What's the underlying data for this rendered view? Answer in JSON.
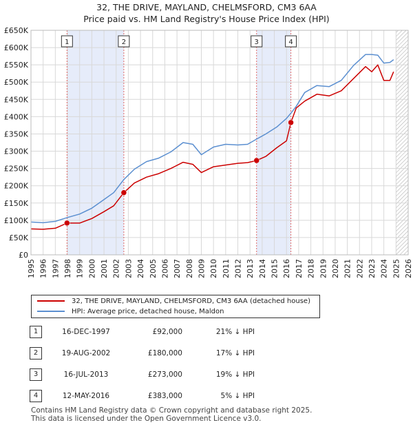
{
  "title_line1": "32, THE DRIVE, MAYLAND, CHELMSFORD, CM3 6AA",
  "title_line2": "Price paid vs. HM Land Registry's House Price Index (HPI)",
  "chart_data": {
    "type": "line",
    "title": "32, THE DRIVE, MAYLAND, CHELMSFORD, CM3 6AA — Price paid vs. HM Land Registry's House Price Index (HPI)",
    "xlabel": "",
    "ylabel": "",
    "xlim": [
      1995,
      2026
    ],
    "ylim": [
      0,
      650000
    ],
    "x_ticks": [
      1995,
      1996,
      1997,
      1998,
      1999,
      2000,
      2001,
      2002,
      2003,
      2004,
      2005,
      2006,
      2007,
      2008,
      2009,
      2010,
      2011,
      2012,
      2013,
      2014,
      2015,
      2016,
      2017,
      2018,
      2019,
      2020,
      2021,
      2022,
      2023,
      2024,
      2025,
      2026
    ],
    "y_ticks": [
      0,
      50000,
      100000,
      150000,
      200000,
      250000,
      300000,
      350000,
      400000,
      450000,
      500000,
      550000,
      600000,
      650000
    ],
    "y_tick_labels": [
      "£0",
      "£50K",
      "£100K",
      "£150K",
      "£200K",
      "£250K",
      "£300K",
      "£350K",
      "£400K",
      "£450K",
      "£500K",
      "£550K",
      "£600K",
      "£650K"
    ],
    "series": [
      {
        "name": "32, THE DRIVE, MAYLAND, CHELMSFORD, CM3 6AA (detached house)",
        "color": "#cc0000",
        "points": [
          [
            1995.0,
            75000
          ],
          [
            1996.0,
            74000
          ],
          [
            1997.0,
            77000
          ],
          [
            1997.96,
            92000
          ],
          [
            1999.0,
            92000
          ],
          [
            2000.0,
            105000
          ],
          [
            2001.0,
            125000
          ],
          [
            2001.8,
            142000
          ],
          [
            2002.63,
            180000
          ],
          [
            2003.5,
            208000
          ],
          [
            2004.5,
            225000
          ],
          [
            2005.5,
            235000
          ],
          [
            2006.5,
            250000
          ],
          [
            2007.5,
            268000
          ],
          [
            2008.3,
            262000
          ],
          [
            2009.0,
            238000
          ],
          [
            2010.0,
            255000
          ],
          [
            2011.0,
            260000
          ],
          [
            2012.0,
            265000
          ],
          [
            2012.8,
            267000
          ],
          [
            2013.54,
            273000
          ],
          [
            2014.3,
            285000
          ],
          [
            2015.2,
            310000
          ],
          [
            2016.0,
            330000
          ],
          [
            2016.36,
            383000
          ],
          [
            2016.8,
            425000
          ],
          [
            2017.5,
            445000
          ],
          [
            2018.5,
            465000
          ],
          [
            2019.5,
            460000
          ],
          [
            2020.5,
            475000
          ],
          [
            2021.5,
            510000
          ],
          [
            2022.5,
            545000
          ],
          [
            2023.0,
            530000
          ],
          [
            2023.5,
            550000
          ],
          [
            2024.0,
            505000
          ],
          [
            2024.5,
            505000
          ],
          [
            2024.8,
            530000
          ]
        ]
      },
      {
        "name": "HPI: Average price, detached house, Maldon",
        "color": "#5b8fd0",
        "points": [
          [
            1995.0,
            95000
          ],
          [
            1996.0,
            93000
          ],
          [
            1997.0,
            97000
          ],
          [
            1998.0,
            108000
          ],
          [
            1999.0,
            118000
          ],
          [
            2000.0,
            135000
          ],
          [
            2001.0,
            160000
          ],
          [
            2001.8,
            180000
          ],
          [
            2002.63,
            218000
          ],
          [
            2003.5,
            248000
          ],
          [
            2004.5,
            270000
          ],
          [
            2005.5,
            280000
          ],
          [
            2006.5,
            298000
          ],
          [
            2007.5,
            325000
          ],
          [
            2008.3,
            320000
          ],
          [
            2009.0,
            290000
          ],
          [
            2010.0,
            312000
          ],
          [
            2011.0,
            320000
          ],
          [
            2012.0,
            318000
          ],
          [
            2012.8,
            320000
          ],
          [
            2013.54,
            335000
          ],
          [
            2014.3,
            350000
          ],
          [
            2015.2,
            370000
          ],
          [
            2016.0,
            395000
          ],
          [
            2016.36,
            410000
          ],
          [
            2016.8,
            430000
          ],
          [
            2017.5,
            470000
          ],
          [
            2018.5,
            490000
          ],
          [
            2019.5,
            487000
          ],
          [
            2020.5,
            505000
          ],
          [
            2021.5,
            548000
          ],
          [
            2022.5,
            580000
          ],
          [
            2023.0,
            580000
          ],
          [
            2023.5,
            578000
          ],
          [
            2024.0,
            555000
          ],
          [
            2024.5,
            557000
          ],
          [
            2024.8,
            565000
          ]
        ]
      }
    ],
    "sales": [
      {
        "label": "1",
        "year": 1997.96,
        "price": 92000,
        "date": "16-DEC-1997",
        "price_text": "£92,000",
        "hpi_text": "21% ↓ HPI"
      },
      {
        "label": "2",
        "year": 2002.63,
        "price": 180000,
        "date": "19-AUG-2002",
        "price_text": "£180,000",
        "hpi_text": "17% ↓ HPI"
      },
      {
        "label": "3",
        "year": 2013.54,
        "price": 273000,
        "date": "16-JUL-2013",
        "price_text": "£273,000",
        "hpi_text": "19% ↓ HPI"
      },
      {
        "label": "4",
        "year": 2016.36,
        "price": 383000,
        "date": "12-MAY-2016",
        "price_text": "£383,000",
        "hpi_text": "5% ↓ HPI"
      }
    ],
    "shaded_ranges": [
      [
        1997.96,
        2002.63
      ],
      [
        2013.54,
        2016.36
      ]
    ],
    "hatched_from": 2025.0,
    "colors": {
      "grid": "#d8d8d8",
      "plot_bg": "#ffffff",
      "shade": "#e6ecfa",
      "marker_line": "#e06666"
    }
  },
  "legend": {
    "property_label": "32, THE DRIVE, MAYLAND, CHELMSFORD, CM3 6AA (detached house)",
    "hpi_label": "HPI: Average price, detached house, Maldon"
  },
  "footer": {
    "line1": "Contains HM Land Registry data © Crown copyright and database right 2025.",
    "line2": "This data is licensed under the Open Government Licence v3.0."
  }
}
